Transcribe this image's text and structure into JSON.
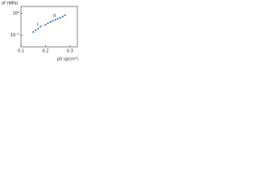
{
  "chart_data": {
    "type": "line",
    "x_label": "ρ0 (g/cm³)",
    "y_label": "σf (MPa)",
    "series": [
      {
        "color": "#3a7fc4",
        "x": [
          0.15,
          0.16,
          0.17,
          0.18,
          0.2,
          0.21,
          0.22,
          0.23,
          0.24,
          0.25,
          0.26,
          0.27,
          0.28
        ],
        "values": [
          0.14,
          0.17,
          0.2,
          0.25,
          0.3,
          0.35,
          0.4,
          0.45,
          0.5,
          0.55,
          0.62,
          0.7,
          0.8
        ]
      }
    ],
    "annotations": [
      {
        "text": "I"
      },
      {
        "text": "II"
      }
    ],
    "xlim": [
      0.1,
      0.33
    ],
    "xticks": [
      0.1,
      0.2,
      0.3
    ],
    "ylim": [
      0.03,
      2
    ],
    "log_y": true,
    "yticks": [
      {
        "value": 0.1,
        "label": "10⁻¹"
      },
      {
        "value": 1,
        "label": "10⁰"
      }
    ]
  }
}
